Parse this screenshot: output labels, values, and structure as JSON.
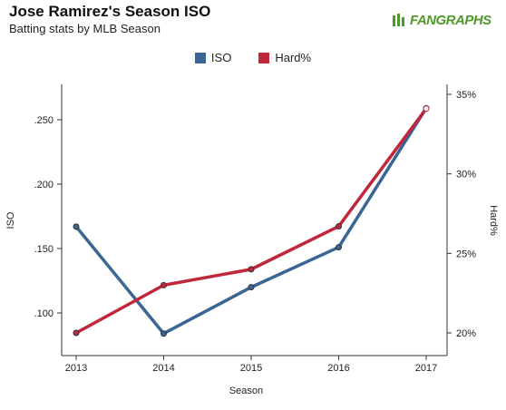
{
  "header": {
    "title": "Jose Ramirez's Season ISO",
    "subtitle": "Batting stats by MLB Season",
    "logo_text": "FANGRAPHS"
  },
  "colors": {
    "iso": "#3a6693",
    "hard": "#c0273a",
    "logo": "#4c9a2a",
    "axis": "#333333"
  },
  "chart_data": {
    "type": "line",
    "title": "Jose Ramirez's Season ISO",
    "subtitle": "Batting stats by MLB Season",
    "xlabel": "Season",
    "categories": [
      "2013",
      "2014",
      "2015",
      "2016",
      "2017"
    ],
    "y_left": {
      "label": "ISO",
      "ticks": [
        ".100",
        ".150",
        ".200",
        ".250"
      ],
      "range": [
        0.075,
        0.275
      ]
    },
    "y_right": {
      "label": "Hard%",
      "ticks": [
        "20%",
        "25%",
        "30%",
        "35%"
      ],
      "range": [
        0.185,
        0.3585
      ]
    },
    "grid": false,
    "legend_position": "top-center",
    "series": [
      {
        "name": "ISO",
        "axis": "left",
        "values": [
          0.167,
          0.084,
          0.12,
          0.151,
          0.259
        ]
      },
      {
        "name": "Hard%",
        "axis": "right",
        "values": [
          0.2,
          0.23,
          0.24,
          0.267,
          0.341
        ]
      }
    ]
  }
}
